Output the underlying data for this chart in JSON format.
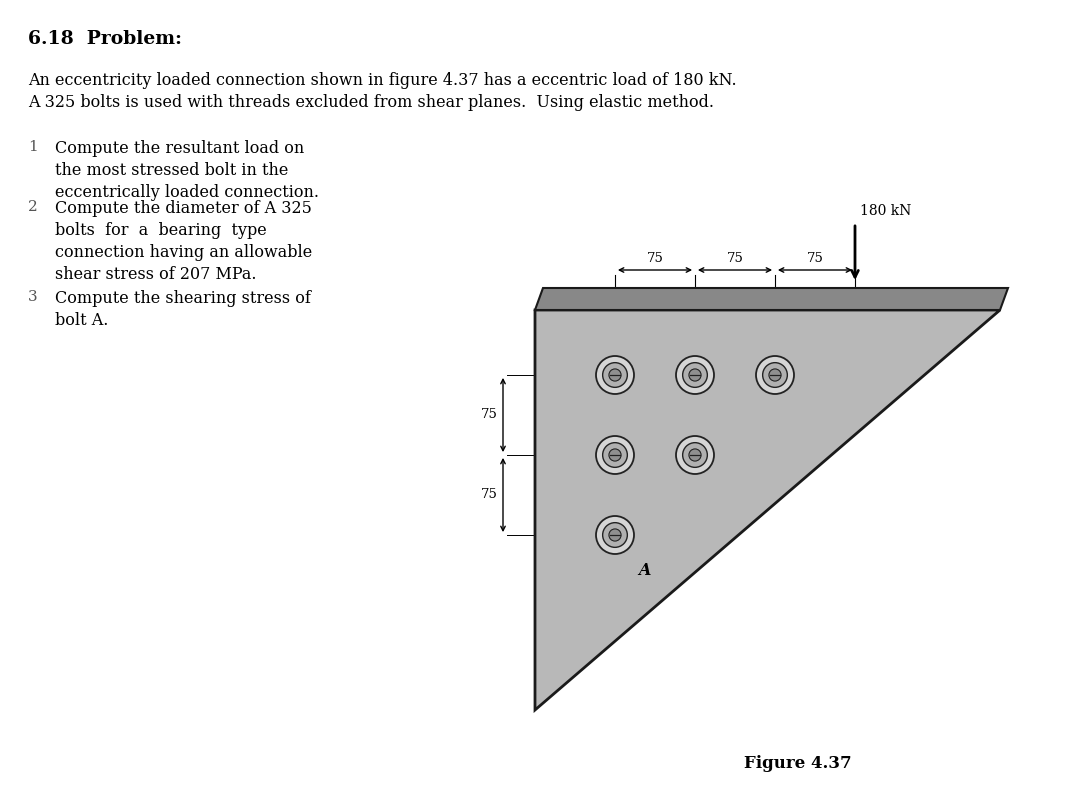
{
  "title": "6.18  Problem:",
  "intro_line1": "An eccentricity loaded connection shown in figure 4.37 has a eccentric load of 180 kN.",
  "intro_line2": "A 325 bolts is used with threads excluded from shear planes.  Using elastic method.",
  "num1": "1",
  "bullet1_line1": "Compute the resultant load on",
  "bullet1_line2": "the most stressed bolt in the",
  "bullet1_line3": "eccentrically loaded connection.",
  "num2": "2",
  "bullet2_line1": "Compute the diameter of A 325",
  "bullet2_line2": "bolts  for  a  bearing  type",
  "bullet2_line3": "connection having an allowable",
  "bullet2_line4": "shear stress of 207 MPa.",
  "num3": "3",
  "bullet3_line1": "Compute the shearing stress of",
  "bullet3_line2": "bolt A.",
  "figure_caption": "Figure 4.37",
  "load_label": "180 kN",
  "dim75_1": "75",
  "dim75_2": "75",
  "dim75_3": "75",
  "side75_1": "75",
  "side75_2": "75",
  "bolt_A_label": "A",
  "bg_color": "#ffffff",
  "plate_fill_color": "#b8b8b8",
  "plate_edge_color": "#1a1a1a",
  "plate_top_fill": "#888888",
  "bolt_outer_color": "#d5d5d5",
  "bolt_mid_color": "#b0b0b0",
  "bolt_inner_color": "#909090",
  "bolt_edge_color": "#222222"
}
